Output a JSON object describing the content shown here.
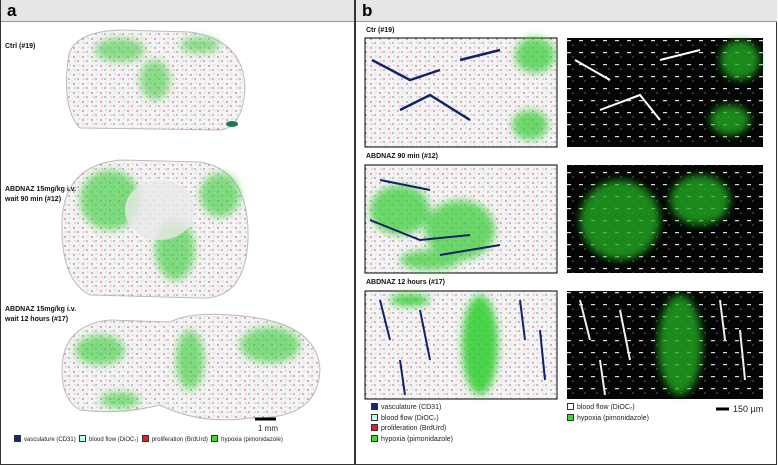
{
  "panel_a": {
    "label": "a",
    "sections": [
      {
        "label_lines": [
          "Ctrl (#19)"
        ]
      },
      {
        "label_lines": [
          "ABDNAZ 15mg/kg i.v.",
          "wait 90 min (#12)"
        ]
      },
      {
        "label_lines": [
          "ABDNAZ 15mg/kg i.v.",
          "wait 12 hours (#17)"
        ]
      }
    ],
    "scale_label": "1 mm",
    "legend": [
      "vasculature (CD31)",
      "blood flow (DiOC₇)",
      "proliferation (BrdUrd)",
      "hypoxia (pimonidazole)"
    ]
  },
  "panel_b": {
    "label": "b",
    "sections": [
      "Ctr  (#19)",
      "ABDNAZ 90 min (#12)",
      "ABDNAZ 12 hours (#17)"
    ],
    "legend_left": [
      "vasculature (CD31)",
      "blood flow (DiOC₇)",
      "proliferation (BrdUrd)",
      "hypoxia (pimonidazole)"
    ],
    "legend_right": [
      "blood flow (DiOC₇)",
      "hypoxia (pimonidazole)"
    ],
    "scale_label": "150 µm"
  }
}
